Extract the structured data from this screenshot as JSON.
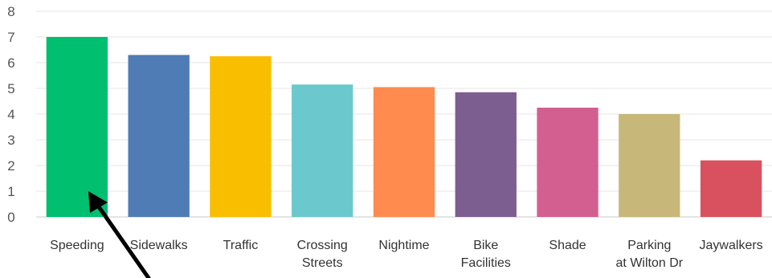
{
  "chart_data": {
    "type": "bar",
    "title": "",
    "xlabel": "",
    "ylabel": "",
    "categories": [
      [
        "Speeding"
      ],
      [
        "Sidewalks"
      ],
      [
        "Traffic"
      ],
      [
        "Crossing",
        "Streets"
      ],
      [
        "Nightime"
      ],
      [
        "Bike",
        "Facilities"
      ],
      [
        "Shade"
      ],
      [
        "Parking",
        "at Wilton Dr"
      ],
      [
        "Jaywalkers"
      ]
    ],
    "values": [
      7.0,
      6.3,
      6.25,
      5.15,
      5.05,
      4.85,
      4.25,
      4.0,
      2.2
    ],
    "colors": [
      "#00bf6f",
      "#507cb6",
      "#f9be00",
      "#6bc8cd",
      "#ff8b4f",
      "#7d5e90",
      "#d25f90",
      "#c7b879",
      "#d9505f"
    ],
    "ylim": [
      0,
      8
    ],
    "yticks": [
      0,
      1,
      2,
      3,
      4,
      5,
      6,
      7,
      8
    ],
    "grid": true,
    "legend": "none",
    "annotation": "black arrow pointing to Speeding bar"
  }
}
